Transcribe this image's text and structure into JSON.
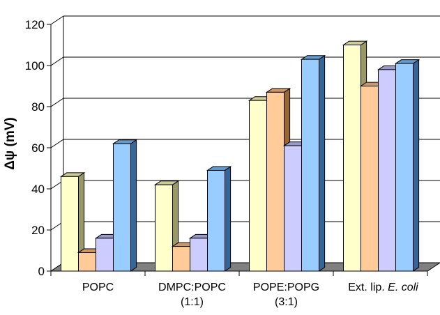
{
  "chart_data": {
    "type": "bar",
    "style": "3d-clustered",
    "ylabel": "Δψ (mV)",
    "ylim": [
      0,
      120
    ],
    "yticks": [
      0,
      20,
      40,
      60,
      80,
      100,
      120
    ],
    "grid": true,
    "legend": "none",
    "categories": [
      {
        "lines": [
          "POPC"
        ]
      },
      {
        "lines": [
          "DMPC:POPC",
          "(1:1)"
        ]
      },
      {
        "lines": [
          "POPE:POPG",
          "(3:1)"
        ]
      },
      {
        "lines": [
          "Ext. lip. ",
          "E. coli"
        ],
        "italic_last": true
      }
    ],
    "series": [
      {
        "values": [
          46,
          42,
          83,
          110
        ],
        "color": "#ffffcc",
        "top": "#cccc99",
        "side": "#999966"
      },
      {
        "values": [
          9,
          12,
          87,
          90
        ],
        "color": "#ffcc99",
        "top": "#cc9966",
        "side": "#996633"
      },
      {
        "values": [
          16,
          16,
          61,
          98
        ],
        "color": "#ccccff",
        "top": "#9999cc",
        "side": "#666699"
      },
      {
        "values": [
          62,
          49,
          103,
          101
        ],
        "color": "#99ccff",
        "top": "#6699cc",
        "side": "#336699"
      }
    ]
  }
}
